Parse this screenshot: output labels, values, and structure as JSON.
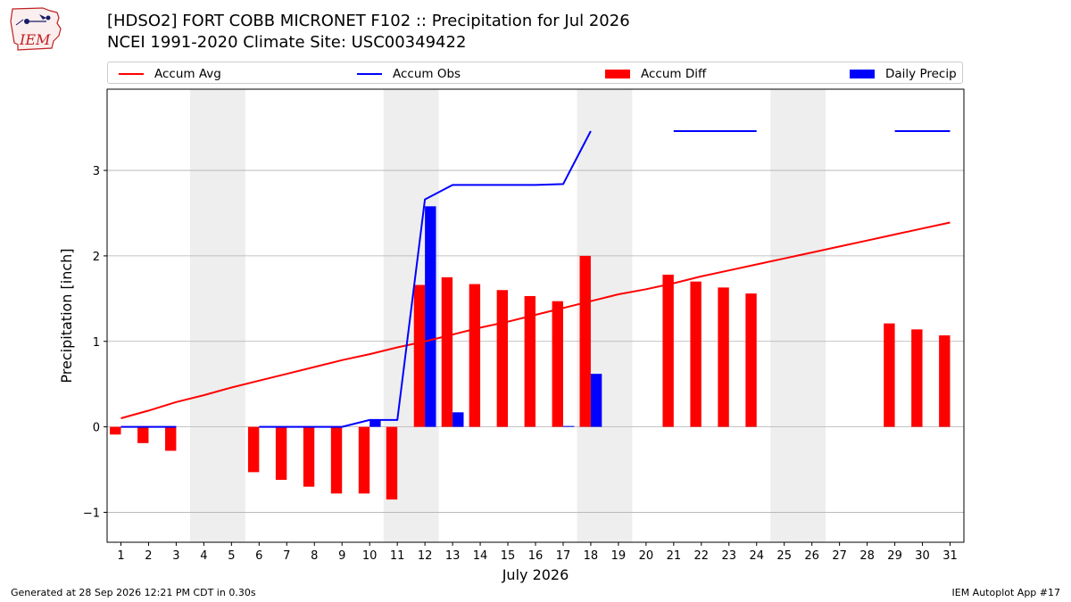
{
  "header": {
    "logo_text": "IEM",
    "title_line1": "[HDSO2] FORT COBB MICRONET F102 :: Precipitation for Jul 2026",
    "title_line2": "NCEI 1991-2020 Climate Site: USC00349422"
  },
  "footer": {
    "generated": "Generated at 28 Sep 2026 12:21 PM CDT in 0.30s",
    "app": "IEM Autoplot App #17"
  },
  "colors": {
    "avg": "#ff0000",
    "obs": "#0000ff",
    "diff": "#ff0000",
    "daily": "#0000ff",
    "weekend_shade": "#eeeeee",
    "grid": "#b0b0b0"
  },
  "chart_data": {
    "type": "bar",
    "xlabel": "July 2026",
    "ylabel": "Precipitation [inch]",
    "xlim": [
      0.5,
      31.5
    ],
    "ylim": [
      -1.35,
      3.95
    ],
    "yticks": [
      -1,
      0,
      1,
      2,
      3
    ],
    "ytick_labels": [
      "−1",
      "0",
      "1",
      "2",
      "3"
    ],
    "x": [
      1,
      2,
      3,
      4,
      5,
      6,
      7,
      8,
      9,
      10,
      11,
      12,
      13,
      14,
      15,
      16,
      17,
      18,
      19,
      20,
      21,
      22,
      23,
      24,
      25,
      26,
      27,
      28,
      29,
      30,
      31
    ],
    "x_labels": [
      "1",
      "2",
      "3",
      "4",
      "5",
      "6",
      "7",
      "8",
      "9",
      "10",
      "11",
      "12",
      "13",
      "14",
      "15",
      "16",
      "17",
      "18",
      "19",
      "20",
      "21",
      "22",
      "23",
      "24",
      "25",
      "26",
      "27",
      "28",
      "29",
      "30",
      "31"
    ],
    "weekends": [
      [
        4,
        5
      ],
      [
        11,
        12
      ],
      [
        18,
        19
      ],
      [
        25,
        26
      ]
    ],
    "grid": "horizontal",
    "legend_position": "top",
    "series": [
      {
        "name": "Accum Avg",
        "kind": "line",
        "values": [
          0.1,
          0.19,
          0.29,
          0.37,
          0.46,
          0.54,
          0.62,
          0.7,
          0.78,
          0.85,
          0.93,
          1.0,
          1.08,
          1.16,
          1.23,
          1.31,
          1.39,
          1.47,
          1.55,
          1.61,
          1.68,
          1.76,
          1.83,
          1.9,
          1.97,
          2.04,
          2.11,
          2.18,
          2.25,
          2.32,
          2.39
        ]
      },
      {
        "name": "Accum Obs",
        "kind": "line",
        "values": [
          0.0,
          0.0,
          0.0,
          null,
          null,
          0.0,
          0.0,
          0.0,
          0.0,
          0.08,
          0.08,
          2.66,
          2.83,
          2.83,
          2.83,
          2.83,
          2.84,
          3.46,
          null,
          null,
          3.46,
          3.46,
          3.46,
          3.46,
          null,
          null,
          null,
          null,
          3.46,
          3.46,
          3.46
        ]
      },
      {
        "name": "Accum Diff",
        "kind": "bar",
        "values": [
          -0.09,
          -0.19,
          -0.28,
          null,
          null,
          -0.53,
          -0.62,
          -0.7,
          -0.78,
          -0.78,
          -0.85,
          1.66,
          1.75,
          1.67,
          1.6,
          1.53,
          1.47,
          2.0,
          null,
          null,
          1.78,
          1.7,
          1.63,
          1.56,
          null,
          null,
          null,
          null,
          1.21,
          1.14,
          1.07
        ]
      },
      {
        "name": "Daily Precip",
        "kind": "bar",
        "values": [
          0.0,
          0.0,
          0.0,
          null,
          null,
          0.0,
          0.0,
          0.0,
          0.0,
          0.08,
          0.0,
          2.58,
          0.17,
          0.0,
          0.0,
          0.0,
          0.01,
          0.62,
          null,
          null,
          null,
          null,
          null,
          null,
          null,
          null,
          null,
          null,
          null,
          null,
          null
        ]
      }
    ]
  }
}
